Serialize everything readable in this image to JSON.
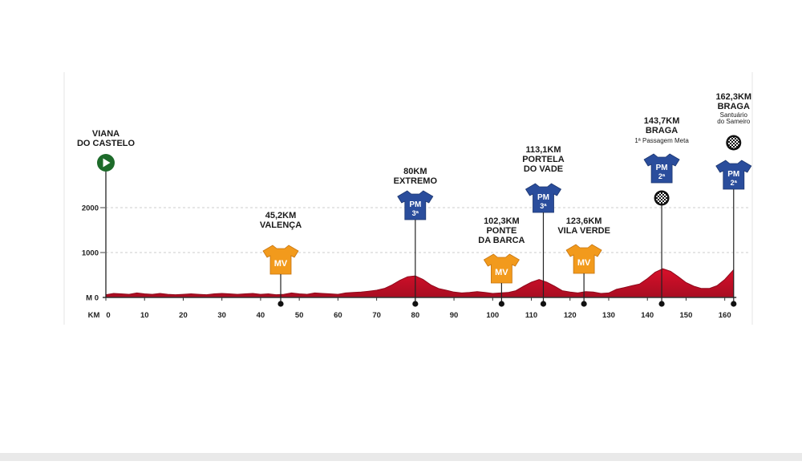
{
  "chart_data": {
    "type": "area",
    "title": "",
    "xlabel": "KM",
    "ylabel": "M",
    "xlim": [
      0,
      163
    ],
    "ylim": [
      0,
      2400
    ],
    "x_ticks": [
      0,
      10,
      20,
      30,
      40,
      50,
      60,
      70,
      80,
      90,
      100,
      110,
      120,
      130,
      140,
      150,
      160
    ],
    "y_ticks": [
      0,
      1000,
      2000
    ],
    "grid": "horizontal dashed",
    "colors": {
      "profile": "#c8102e",
      "mv_jersey": "#f29a1c",
      "pm_jersey": "#2a4d9c",
      "start": "#1d6b2a"
    },
    "profile": {
      "x": [
        0,
        2,
        4,
        6,
        8,
        10,
        12,
        14,
        16,
        18,
        20,
        22,
        24,
        26,
        28,
        30,
        32,
        34,
        36,
        38,
        40,
        42,
        44,
        46,
        48,
        50,
        52,
        54,
        56,
        58,
        60,
        62,
        64,
        66,
        68,
        70,
        72,
        74,
        76,
        78,
        80,
        82,
        84,
        86,
        88,
        90,
        92,
        94,
        96,
        98,
        100,
        102,
        104,
        106,
        108,
        110,
        112,
        114,
        116,
        118,
        120,
        122,
        124,
        126,
        128,
        130,
        132,
        134,
        136,
        138,
        140,
        142,
        144,
        146,
        148,
        150,
        152,
        154,
        156,
        158,
        160,
        162.3
      ],
      "y": [
        60,
        90,
        80,
        70,
        100,
        80,
        70,
        90,
        70,
        60,
        70,
        80,
        70,
        60,
        80,
        90,
        80,
        70,
        80,
        90,
        70,
        80,
        60,
        70,
        100,
        80,
        70,
        100,
        90,
        80,
        70,
        100,
        110,
        120,
        140,
        160,
        200,
        280,
        380,
        460,
        480,
        400,
        280,
        200,
        160,
        120,
        100,
        110,
        130,
        110,
        90,
        100,
        110,
        150,
        250,
        340,
        400,
        340,
        250,
        150,
        120,
        100,
        130,
        120,
        90,
        100,
        180,
        220,
        260,
        300,
        420,
        560,
        640,
        580,
        460,
        330,
        250,
        200,
        200,
        260,
        400,
        620
      ]
    },
    "series": [
      {
        "values": []
      }
    ],
    "annotations": [
      {
        "id": "start",
        "km": 0,
        "lines": [
          "VIANA",
          "DO CASTELO"
        ],
        "sub": "",
        "marker": "start"
      },
      {
        "id": "valenca",
        "km": 45.2,
        "lines": [
          "45,2KM",
          "VALENÇA"
        ],
        "sub": "",
        "marker": "jersey",
        "jersey": "mv",
        "jersey_text": "MV",
        "jersey_text2": ""
      },
      {
        "id": "extremo",
        "km": 80,
        "lines": [
          "80KM",
          "EXTREMO"
        ],
        "sub": "",
        "marker": "jersey",
        "jersey": "pm",
        "jersey_text": "PM",
        "jersey_text2": "3ª"
      },
      {
        "id": "ponte-da-barca",
        "km": 102.3,
        "lines": [
          "102,3KM",
          "PONTE",
          "DA BARCA"
        ],
        "sub": "",
        "marker": "jersey",
        "jersey": "mv",
        "jersey_text": "MV",
        "jersey_text2": ""
      },
      {
        "id": "portela-do-vade",
        "km": 113.1,
        "lines": [
          "113,1KM",
          "PORTELA",
          "DO VADE"
        ],
        "sub": "",
        "marker": "jersey",
        "jersey": "pm",
        "jersey_text": "PM",
        "jersey_text2": "3ª"
      },
      {
        "id": "vila-verde",
        "km": 123.6,
        "lines": [
          "123,6KM",
          "VILA VERDE"
        ],
        "sub": "",
        "marker": "jersey",
        "jersey": "mv",
        "jersey_text": "MV",
        "jersey_text2": ""
      },
      {
        "id": "braga-1",
        "km": 143.7,
        "lines": [
          "143,7KM",
          "BRAGA"
        ],
        "sub": "1ª Passagem Meta",
        "marker": "jersey-finish",
        "jersey": "pm",
        "jersey_text": "PM",
        "jersey_text2": "2ª"
      },
      {
        "id": "braga-final",
        "km": 162.3,
        "lines": [
          "162,3KM",
          "BRAGA"
        ],
        "sub": "Santuário do Sameiro",
        "marker": "finish-jersey",
        "jersey": "pm",
        "jersey_text": "PM",
        "jersey_text2": "2ª"
      }
    ]
  }
}
